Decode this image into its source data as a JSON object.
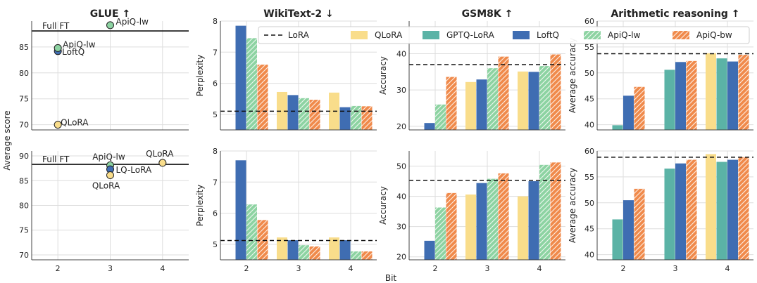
{
  "figure": {
    "xlabel": "Bit"
  },
  "colors": {
    "LoRA": "#222222",
    "QLoRA": "#f9dd8b",
    "GPTQ-LoRA": "#5bb3a6",
    "LoftQ": "#3f6db2",
    "ApiQ-lw": "#8dd3a2",
    "ApiQ-bw": "#f08a4b",
    "grid": "#dddddd",
    "axis": "#444444"
  },
  "legend": {
    "placement": "top, spanning WikiText-2 to Arithmetic reasoning panels",
    "entries": [
      {
        "name": "LoRA",
        "style": "dashed-line"
      },
      {
        "name": "QLoRA",
        "style": "bar"
      },
      {
        "name": "GPTQ-LoRA",
        "style": "bar"
      },
      {
        "name": "LoftQ",
        "style": "bar"
      },
      {
        "name": "ApiQ-lw",
        "style": "hatched-bar"
      },
      {
        "name": "ApiQ-bw",
        "style": "hatched-bar"
      }
    ]
  },
  "chart_data": [
    {
      "id": "glue_top",
      "type": "scatter",
      "title": "GLUE ↑",
      "ylabel": "Average score",
      "ylim": [
        69,
        90
      ],
      "yticks": [
        70,
        75,
        80,
        85
      ],
      "xticks": [
        2,
        3,
        4
      ],
      "show_xticks": false,
      "hline": {
        "y": 88.1,
        "label": "Full FT",
        "style": "solid"
      },
      "points": [
        {
          "x": 2,
          "y": 84.2,
          "method": "LoftQ",
          "label": "LoftQ"
        },
        {
          "x": 2,
          "y": 84.8,
          "method": "ApiQ-lw",
          "label": "ApiQ-lw"
        },
        {
          "x": 2,
          "y": 70.0,
          "method": "QLoRA",
          "label": "QLoRA"
        },
        {
          "x": 3,
          "y": 89.2,
          "method": "ApiQ-lw",
          "label": "ApiQ-lw"
        }
      ]
    },
    {
      "id": "glue_bottom",
      "type": "scatter",
      "title": "",
      "ylabel": "",
      "ylim": [
        69,
        91
      ],
      "yticks": [
        70,
        75,
        80,
        85,
        90
      ],
      "xticks": [
        2,
        3,
        4
      ],
      "show_xticks": true,
      "hline": {
        "y": 88.3,
        "label": "Full FT",
        "style": "solid"
      },
      "points": [
        {
          "x": 3,
          "y": 88.1,
          "method": "ApiQ-lw",
          "label": "ApiQ-lw"
        },
        {
          "x": 3,
          "y": 87.3,
          "method": "LoftQ",
          "label": "LQ-LoRA"
        },
        {
          "x": 3,
          "y": 86.1,
          "method": "QLoRA",
          "label": "QLoRA"
        },
        {
          "x": 4,
          "y": 88.6,
          "method": "QLoRA",
          "label": "QLoRA"
        }
      ]
    },
    {
      "id": "wiki_top",
      "type": "bar",
      "title": "WikiText-2 ↓",
      "ylabel": "Perplexity",
      "ylim": [
        4.5,
        8.0
      ],
      "yticks": [
        5,
        6,
        7,
        8
      ],
      "categories": [
        "2",
        "3",
        "4"
      ],
      "show_xticks": false,
      "hline": {
        "y": 5.1,
        "style": "dashed"
      },
      "series": [
        {
          "name": "QLoRA",
          "values": [
            null,
            5.72,
            5.7
          ]
        },
        {
          "name": "GPTQ-LoRA",
          "values": [
            null,
            null,
            null
          ]
        },
        {
          "name": "LoftQ",
          "values": [
            7.85,
            5.62,
            5.23
          ]
        },
        {
          "name": "ApiQ-lw",
          "values": [
            7.45,
            5.52,
            5.27
          ]
        },
        {
          "name": "ApiQ-bw",
          "values": [
            6.6,
            5.47,
            5.26
          ]
        }
      ]
    },
    {
      "id": "wiki_bottom",
      "type": "bar",
      "title": "",
      "ylabel": "Perplexity",
      "ylim": [
        4.5,
        8.0
      ],
      "yticks": [
        5,
        6,
        7,
        8
      ],
      "categories": [
        "2",
        "3",
        "4"
      ],
      "show_xticks": true,
      "hline": {
        "y": 5.12,
        "style": "dashed"
      },
      "series": [
        {
          "name": "QLoRA",
          "values": [
            null,
            5.22,
            5.22
          ]
        },
        {
          "name": "GPTQ-LoRA",
          "values": [
            null,
            null,
            null
          ]
        },
        {
          "name": "LoftQ",
          "values": [
            7.7,
            5.13,
            5.13
          ]
        },
        {
          "name": "ApiQ-lw",
          "values": [
            6.28,
            4.97,
            4.77
          ]
        },
        {
          "name": "ApiQ-bw",
          "values": [
            5.78,
            4.93,
            4.77
          ]
        }
      ]
    },
    {
      "id": "gsm_top",
      "type": "bar",
      "title": "GSM8K ↑",
      "ylabel": "Accuracy",
      "ylim": [
        19,
        49
      ],
      "yticks": [
        20,
        30,
        40
      ],
      "categories": [
        "2",
        "3",
        "4"
      ],
      "show_xticks": false,
      "hline": {
        "y": 37.0,
        "style": "dashed"
      },
      "series": [
        {
          "name": "QLoRA",
          "values": [
            null,
            32.2,
            35.1
          ]
        },
        {
          "name": "GPTQ-LoRA",
          "values": [
            null,
            null,
            null
          ]
        },
        {
          "name": "LoftQ",
          "values": [
            20.9,
            32.9,
            35.0
          ]
        },
        {
          "name": "ApiQ-lw",
          "values": [
            26.0,
            36.0,
            36.6
          ]
        },
        {
          "name": "ApiQ-bw",
          "values": [
            33.6,
            39.2,
            39.8
          ]
        }
      ]
    },
    {
      "id": "gsm_bottom",
      "type": "bar",
      "title": "",
      "ylabel": "Accuracy",
      "ylim": [
        19,
        55
      ],
      "yticks": [
        20,
        30,
        40,
        50
      ],
      "categories": [
        "2",
        "3",
        "4"
      ],
      "show_xticks": true,
      "hline": {
        "y": 45.3,
        "style": "dashed"
      },
      "series": [
        {
          "name": "QLoRA",
          "values": [
            null,
            40.6,
            40.0
          ]
        },
        {
          "name": "GPTQ-LoRA",
          "values": [
            null,
            null,
            null
          ]
        },
        {
          "name": "LoftQ",
          "values": [
            25.3,
            44.4,
            45.0
          ]
        },
        {
          "name": "ApiQ-lw",
          "values": [
            36.3,
            45.8,
            50.4
          ]
        },
        {
          "name": "ApiQ-bw",
          "values": [
            41.1,
            47.6,
            51.2
          ]
        }
      ]
    },
    {
      "id": "arith_top",
      "type": "bar",
      "title": "Arithmetic reasoning ↑",
      "ylabel": "Average accuracy",
      "ylim": [
        39,
        60
      ],
      "yticks": [
        40,
        45,
        50,
        55,
        60
      ],
      "categories": [
        "2",
        "3",
        "4"
      ],
      "show_xticks": false,
      "hline": {
        "y": 53.7,
        "style": "dashed"
      },
      "series": [
        {
          "name": "QLoRA",
          "values": [
            null,
            null,
            53.8
          ]
        },
        {
          "name": "GPTQ-LoRA",
          "values": [
            39.9,
            50.6,
            52.8
          ]
        },
        {
          "name": "LoftQ",
          "values": [
            45.6,
            52.1,
            52.2
          ]
        },
        {
          "name": "ApiQ-lw",
          "values": [
            null,
            null,
            null
          ]
        },
        {
          "name": "ApiQ-bw",
          "values": [
            47.3,
            52.3,
            53.5
          ]
        }
      ]
    },
    {
      "id": "arith_bottom",
      "type": "bar",
      "title": "",
      "ylabel": "Average accuracy",
      "ylim": [
        39,
        60
      ],
      "yticks": [
        40,
        45,
        50,
        55,
        60
      ],
      "categories": [
        "2",
        "3",
        "4"
      ],
      "show_xticks": true,
      "hline": {
        "y": 58.8,
        "style": "dashed"
      },
      "series": [
        {
          "name": "QLoRA",
          "values": [
            null,
            null,
            59.4
          ]
        },
        {
          "name": "GPTQ-LoRA",
          "values": [
            46.8,
            56.6,
            57.9
          ]
        },
        {
          "name": "LoftQ",
          "values": [
            50.5,
            57.6,
            58.3
          ]
        },
        {
          "name": "ApiQ-lw",
          "values": [
            null,
            null,
            null
          ]
        },
        {
          "name": "ApiQ-bw",
          "values": [
            52.7,
            58.3,
            58.8
          ]
        }
      ]
    }
  ]
}
